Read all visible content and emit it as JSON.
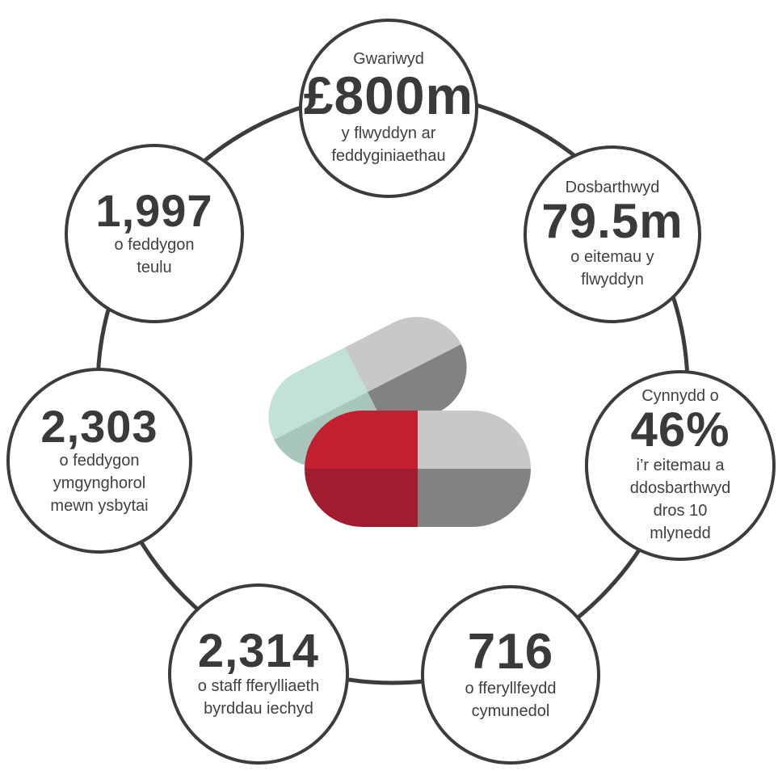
{
  "stats": [
    {
      "pre": "Gwariwyd",
      "big": "£800m",
      "post": [
        "y flwyddyn ar",
        "feddyginiaethau"
      ]
    },
    {
      "pre": "Dosbarthwyd",
      "big": "79.5m",
      "post": [
        "o eitemau y",
        "flwyddyn"
      ]
    },
    {
      "pre": "Cynnydd o",
      "big": "46%",
      "post": [
        "i’r eitemau a",
        "ddosbarthwyd",
        "dros 10",
        "mlynedd"
      ]
    },
    {
      "pre": "",
      "big": "716",
      "post": [
        "o fferyllfeydd",
        "cymunedol"
      ]
    },
    {
      "pre": "",
      "big": "2,314",
      "post": [
        "o staff fferylliaeth",
        "byrddau iechyd"
      ]
    },
    {
      "pre": "",
      "big": "2,303",
      "post": [
        "o feddygon",
        "ymgynghorol",
        "mewn ysbytai"
      ]
    },
    {
      "pre": "",
      "big": "1,997",
      "post": [
        "o feddygon",
        "teulu"
      ]
    }
  ],
  "colors": {
    "ring": "#3c3c3c",
    "text": "#3f3f3f",
    "mint_light": "#c2e2d6",
    "mint_dark": "#a9c6ba",
    "grey_light": "#c8c8c8",
    "grey_dark": "#818284",
    "red_light": "#c21f30",
    "red_dark": "#a11c2e"
  },
  "icons": {
    "center": "medicine-capsules-icon"
  }
}
